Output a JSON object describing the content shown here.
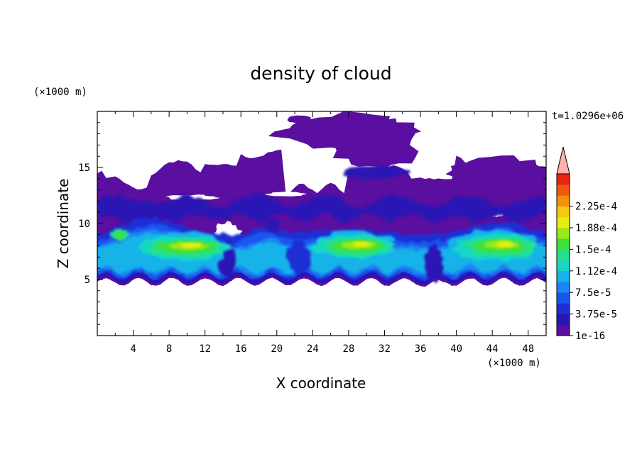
{
  "chart_data": {
    "type": "heatmap",
    "title": "density of cloud",
    "xlabel": "X coordinate",
    "ylabel": "Z coordinate",
    "x_unit": "(×1000 m)",
    "y_unit": "(×1000 m)",
    "time_label": "t=1.0296e+06",
    "xlim": [
      0,
      50
    ],
    "ylim": [
      0,
      20
    ],
    "x_ticks": [
      4,
      8,
      12,
      16,
      20,
      24,
      28,
      32,
      36,
      40,
      44,
      48
    ],
    "y_ticks": [
      5,
      10,
      15
    ],
    "colorbar": {
      "min": 1e-16,
      "max": 0.00024,
      "extend": "max",
      "labels": [
        "1e-16",
        "3.75e-5",
        "7.5e-5",
        "1.12e-4",
        "1.5e-4",
        "1.88e-4",
        "2.25e-4"
      ],
      "colors": [
        "#5a0fa0",
        "#2b14b4",
        "#1f2fd4",
        "#1a55ee",
        "#1c86f2",
        "#14b3e8",
        "#19d6c4",
        "#27e08a",
        "#3fe03a",
        "#9be81c",
        "#e6ee10",
        "#f6c812",
        "#f49010",
        "#f05a10",
        "#e82414",
        "#ffb0b0"
      ]
    },
    "features": {
      "cloud_base_km": 4.8,
      "cloud_top_km": 19.5,
      "peak_regions": [
        {
          "x_km": 9,
          "z_km": 7.8,
          "level": "1.5e-4"
        },
        {
          "x_km": 29,
          "z_km": 7.8,
          "level": "1.5e-4"
        },
        {
          "x_km": 44,
          "z_km": 8.0,
          "level": "1.5e-4"
        }
      ]
    }
  }
}
